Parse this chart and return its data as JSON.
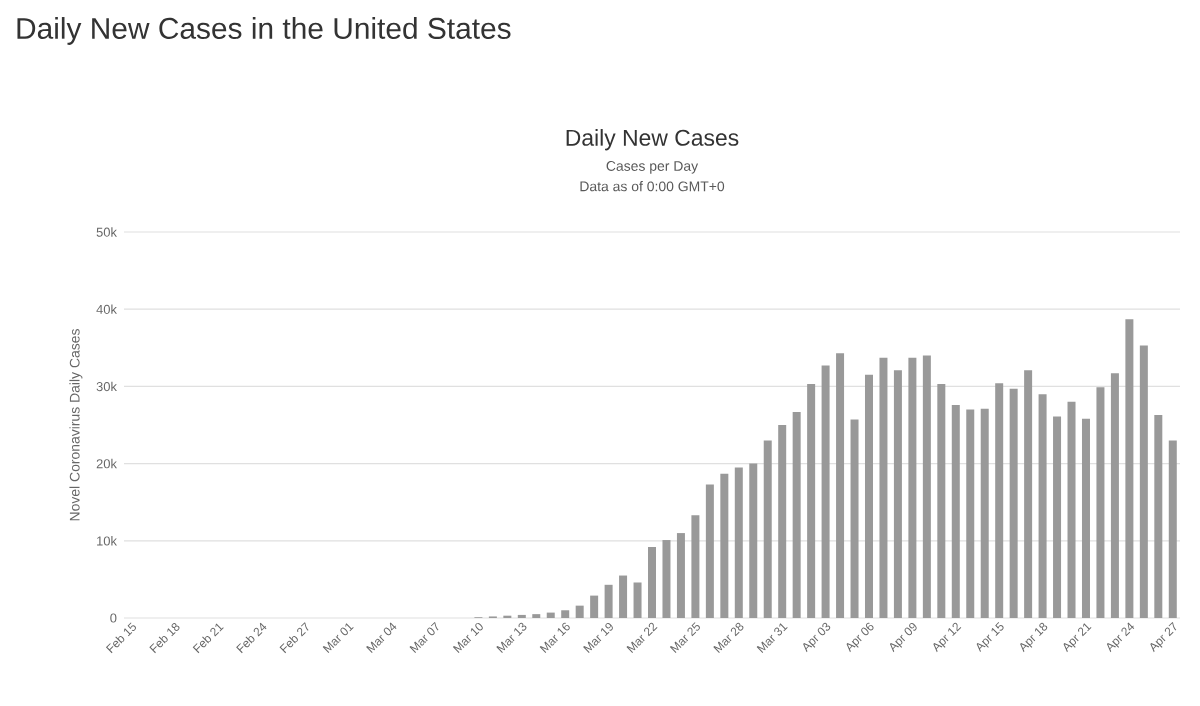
{
  "chart_data": {
    "type": "bar",
    "title": "Daily New Cases in the United States",
    "subtitle": "Daily New Cases",
    "annotations": [
      "Cases per Day",
      "Data as of 0:00 GMT+0"
    ],
    "ylabel": "Novel Coronavirus Daily Cases",
    "categories": [
      "Feb 15",
      null,
      null,
      "Feb 18",
      null,
      null,
      "Feb 21",
      null,
      null,
      "Feb 24",
      null,
      null,
      "Feb 27",
      null,
      null,
      "Mar 01",
      null,
      null,
      "Mar 04",
      null,
      null,
      "Mar 07",
      null,
      null,
      "Mar 10",
      null,
      null,
      "Mar 13",
      null,
      null,
      "Mar 16",
      null,
      null,
      "Mar 19",
      null,
      null,
      "Mar 22",
      null,
      null,
      "Mar 25",
      null,
      null,
      "Mar 28",
      null,
      null,
      "Mar 31",
      null,
      null,
      "Apr 03",
      null,
      null,
      "Apr 06",
      null,
      null,
      "Apr 09",
      null,
      null,
      "Apr 12",
      null,
      null,
      "Apr 15",
      null,
      null,
      "Apr 18",
      null,
      null,
      "Apr 21",
      null,
      null,
      "Apr 24",
      null,
      null,
      "Apr 27"
    ],
    "values": [
      0,
      0,
      0,
      0,
      0,
      0,
      0,
      0,
      0,
      0,
      0,
      0,
      0,
      0,
      0,
      0,
      0,
      0,
      0,
      0,
      0,
      0,
      0,
      0,
      100,
      200,
      300,
      400,
      500,
      700,
      1000,
      1600,
      2900,
      4300,
      5500,
      4600,
      9200,
      10100,
      11000,
      13300,
      17300,
      18700,
      19500,
      20000,
      23000,
      25000,
      26700,
      30300,
      32700,
      34300,
      25700,
      31500,
      33700,
      32100,
      33700,
      34000,
      30300,
      27600,
      27000,
      27100,
      30400,
      29700,
      32100,
      29000,
      26100,
      28000,
      25800,
      29900,
      31700,
      38700,
      35300,
      26300,
      23000
    ],
    "color": "#999999",
    "ylim": [
      0,
      50000
    ],
    "yticks": [
      {
        "value": 0,
        "label": "0"
      },
      {
        "value": 10000,
        "label": "10k"
      },
      {
        "value": 20000,
        "label": "20k"
      },
      {
        "value": 30000,
        "label": "30k"
      },
      {
        "value": 40000,
        "label": "40k"
      },
      {
        "value": 50000,
        "label": "50k"
      }
    ],
    "grid": "y"
  }
}
